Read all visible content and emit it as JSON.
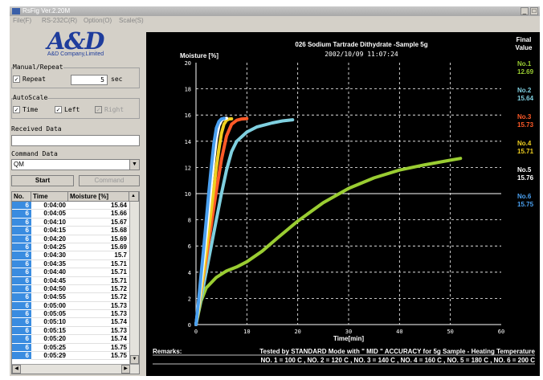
{
  "window": {
    "title": "RsFig Ver.2.20M",
    "menu": [
      "File(F)",
      "RS-232C(R)",
      "Option(O)",
      "Scale(S)"
    ]
  },
  "logo": {
    "text": "A&D",
    "subtitle": "A&D Company,Limited"
  },
  "panel": {
    "manual_repeat_label": "Manual/Repeat",
    "repeat_label": "Repeat",
    "repeat_checked": true,
    "repeat_value": "5",
    "sec_label": "sec",
    "autoscale_label": "AutoScale",
    "time_label": "Time",
    "time_checked": true,
    "left_label": "Left",
    "left_checked": true,
    "right_label": "Right",
    "right_checked": true,
    "received_label": "Received Data",
    "received_value": "",
    "command_label": "Command Data",
    "command_value": "QM",
    "start_label": "Start",
    "command_button_label": "Command"
  },
  "table": {
    "headers": [
      "No.",
      "Time",
      "Moisture [%]"
    ],
    "rows": [
      [
        "6",
        "0:04:00",
        "15.64"
      ],
      [
        "6",
        "0:04:05",
        "15.66"
      ],
      [
        "6",
        "0:04:10",
        "15.67"
      ],
      [
        "6",
        "0:04:15",
        "15.68"
      ],
      [
        "6",
        "0:04:20",
        "15.69"
      ],
      [
        "6",
        "0:04:25",
        "15.69"
      ],
      [
        "6",
        "0:04:30",
        "15.7"
      ],
      [
        "6",
        "0:04:35",
        "15.71"
      ],
      [
        "6",
        "0:04:40",
        "15.71"
      ],
      [
        "6",
        "0:04:45",
        "15.71"
      ],
      [
        "6",
        "0:04:50",
        "15.72"
      ],
      [
        "6",
        "0:04:55",
        "15.72"
      ],
      [
        "6",
        "0:05:00",
        "15.73"
      ],
      [
        "6",
        "0:05:05",
        "15.73"
      ],
      [
        "6",
        "0:05:10",
        "15.74"
      ],
      [
        "6",
        "0:05:15",
        "15.73"
      ],
      [
        "6",
        "0:05:20",
        "15.74"
      ],
      [
        "6",
        "0:05:25",
        "15.75"
      ],
      [
        "6",
        "0:05:29",
        "15.75"
      ]
    ]
  },
  "chart_data": {
    "type": "line",
    "title": "026 Sodium Tartrade Dithydrate -Sample 5g",
    "subtitle": "2002/10/09 11:07:24",
    "ylabel": "Moisture [%]",
    "xlabel": "Time[min]",
    "xlim": [
      0,
      60
    ],
    "ylim": [
      0,
      20
    ],
    "xticks": [
      "0",
      "10",
      "20",
      "30",
      "40",
      "50",
      "60"
    ],
    "yticks": [
      "0",
      "2",
      "4",
      "6",
      "8",
      "10",
      "12",
      "14",
      "16",
      "18",
      "20"
    ],
    "reference_line_y": 10,
    "grid": true,
    "final_value_header": [
      "Final",
      "Value"
    ],
    "series": [
      {
        "name": "No.1",
        "final": "12.69",
        "color": "#9acd32",
        "x": [
          0,
          1,
          2,
          4,
          6,
          8,
          10,
          13,
          16,
          20,
          25,
          30,
          35,
          40,
          45,
          50,
          52
        ],
        "y": [
          0,
          1.8,
          2.8,
          3.6,
          4.1,
          4.4,
          4.8,
          5.6,
          6.6,
          7.9,
          9.3,
          10.4,
          11.2,
          11.8,
          12.2,
          12.55,
          12.69
        ]
      },
      {
        "name": "No.2",
        "final": "15.64",
        "color": "#7fd0e0",
        "x": [
          0,
          1,
          2,
          3,
          4,
          5,
          6,
          7,
          8,
          10,
          12,
          15,
          17,
          19
        ],
        "y": [
          0,
          2.0,
          4.0,
          6.0,
          8.0,
          10.0,
          11.8,
          13.2,
          14.0,
          14.7,
          15.1,
          15.4,
          15.55,
          15.64
        ]
      },
      {
        "name": "No.3",
        "final": "15.73",
        "color": "#ff5a28",
        "x": [
          0,
          1,
          2,
          3,
          4,
          5,
          6,
          7,
          8,
          9,
          10
        ],
        "y": [
          0,
          2.5,
          5.0,
          7.6,
          10.2,
          12.6,
          14.4,
          15.3,
          15.6,
          15.7,
          15.73
        ]
      },
      {
        "name": "No.4",
        "final": "15.71",
        "color": "#f0d020",
        "x": [
          0,
          0.5,
          1,
          1.5,
          2,
          2.5,
          3,
          3.5,
          4,
          4.5,
          5,
          5.5,
          6,
          6.5,
          7
        ],
        "y": [
          0,
          1.2,
          2.6,
          4.0,
          5.6,
          7.2,
          8.8,
          10.4,
          12.0,
          13.4,
          14.6,
          15.3,
          15.6,
          15.7,
          15.71
        ]
      },
      {
        "name": "No.5",
        "final": "15.76",
        "color": "#ffffff",
        "x": [
          0,
          0.5,
          1,
          1.5,
          2,
          2.5,
          3,
          3.5,
          4,
          4.5,
          5,
          5.5,
          6
        ],
        "y": [
          0,
          1.5,
          3.2,
          5.0,
          6.9,
          8.8,
          10.8,
          12.6,
          14.2,
          15.2,
          15.6,
          15.72,
          15.76
        ]
      },
      {
        "name": "No.6",
        "final": "15.75",
        "color": "#4aa0f0",
        "x": [
          0,
          0.5,
          1,
          1.5,
          2,
          2.5,
          3,
          3.5,
          4,
          4.5,
          5,
          5.5
        ],
        "y": [
          0,
          1.8,
          3.8,
          5.8,
          7.9,
          10.0,
          12.0,
          13.8,
          15.0,
          15.5,
          15.7,
          15.75
        ]
      }
    ],
    "remarks_label": "Remarks:",
    "remarks_line1": "Tested by STANDARD Mode with \" MID \" ACCURACY for 5g Sample  - Heating Temperature",
    "remarks_line2": "NO. 1 = 100 C ,  NO. 2 = 120 C ,  NO. 3 = 140 C ,  NO. 4 = 160 C ,  NO. 5 = 180 C ,  NO. 6 = 200 C"
  }
}
